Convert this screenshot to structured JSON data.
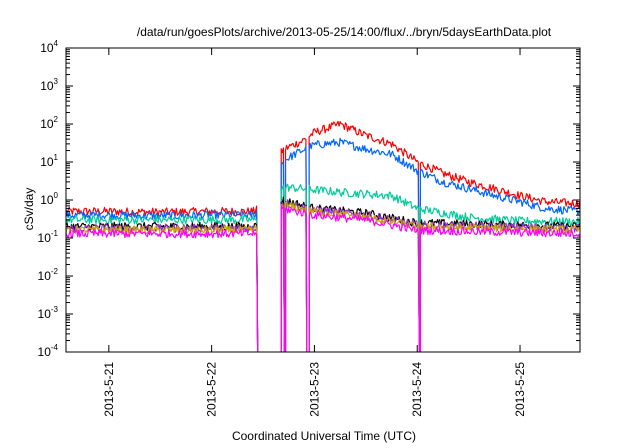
{
  "chart_data": {
    "type": "line",
    "title": "/data/run/goesPlots/archive/2013-05-25/14:00/flux/../bryn/5daysEarthData.plot",
    "xlabel": "Coordinated Universal Time (UTC)",
    "ylabel": "cSv/day",
    "y_scale": "log",
    "ylim": [
      0.0001,
      10000
    ],
    "y_ticks": [
      {
        "base": "10",
        "exp": "-4",
        "value": 0.0001
      },
      {
        "base": "10",
        "exp": "-3",
        "value": 0.001
      },
      {
        "base": "10",
        "exp": "-2",
        "value": 0.01
      },
      {
        "base": "10",
        "exp": "-1",
        "value": 0.1
      },
      {
        "base": "10",
        "exp": "0",
        "value": 1
      },
      {
        "base": "10",
        "exp": "1",
        "value": 10
      },
      {
        "base": "10",
        "exp": "2",
        "value": 100
      },
      {
        "base": "10",
        "exp": "3",
        "value": 1000
      },
      {
        "base": "10",
        "exp": "4",
        "value": 10000
      }
    ],
    "xlim": [
      "2013-05-20 14:00",
      "2013-05-25 14:00"
    ],
    "x_ticks": [
      "2013-5-21",
      "2013-5-22",
      "2013-5-23",
      "2013-5-24",
      "2013-5-25"
    ],
    "grid": false,
    "legend": "none",
    "series": [
      {
        "color": "#ff0000",
        "x": [
          "2013-05-20 14:00",
          "2013-05-21 00:00",
          "2013-05-21 12:00",
          "2013-05-22 00:00",
          "2013-05-22 10:00",
          "2013-05-22 16:30",
          "2013-05-22 18:00",
          "2013-05-22 21:00",
          "2013-05-23 00:00",
          "2013-05-23 06:00",
          "2013-05-23 12:00",
          "2013-05-23 18:00",
          "2013-05-24 00:00",
          "2013-05-24 06:00",
          "2013-05-24 12:00",
          "2013-05-24 18:00",
          "2013-05-25 00:00",
          "2013-05-25 06:00",
          "2013-05-25 14:00"
        ],
        "y": [
          0.5,
          0.5,
          0.48,
          0.5,
          0.5,
          20,
          25,
          35,
          60,
          100,
          50,
          30,
          10,
          5,
          3,
          2,
          1.3,
          0.9,
          0.8
        ]
      },
      {
        "color": "#0066ff",
        "x": [
          "2013-05-20 14:00",
          "2013-05-21 00:00",
          "2013-05-21 12:00",
          "2013-05-22 00:00",
          "2013-05-22 10:00",
          "2013-05-22 16:30",
          "2013-05-22 18:00",
          "2013-05-22 21:00",
          "2013-05-23 00:00",
          "2013-05-23 06:00",
          "2013-05-23 12:00",
          "2013-05-23 18:00",
          "2013-05-24 00:00",
          "2013-05-24 06:00",
          "2013-05-24 12:00",
          "2013-05-24 18:00",
          "2013-05-25 00:00",
          "2013-05-25 06:00",
          "2013-05-25 14:00"
        ],
        "y": [
          0.4,
          0.4,
          0.38,
          0.4,
          0.4,
          10,
          13,
          20,
          28,
          33,
          22,
          16,
          6,
          3,
          2,
          1.3,
          0.9,
          0.6,
          0.5
        ]
      },
      {
        "color": "#00cc99",
        "x": [
          "2013-05-20 14:00",
          "2013-05-21 12:00",
          "2013-05-22 10:00",
          "2013-05-22 16:30",
          "2013-05-22 21:00",
          "2013-05-23 06:00",
          "2013-05-23 18:00",
          "2013-05-24 00:00",
          "2013-05-24 12:00",
          "2013-05-25 00:00",
          "2013-05-25 14:00"
        ],
        "y": [
          0.3,
          0.3,
          0.3,
          2.2,
          2.0,
          1.6,
          1.3,
          0.6,
          0.35,
          0.28,
          0.27
        ]
      },
      {
        "color": "#000000",
        "x": [
          "2013-05-20 14:00",
          "2013-05-22 10:00",
          "2013-05-22 16:30",
          "2013-05-23 00:00",
          "2013-05-23 12:00",
          "2013-05-24 00:00",
          "2013-05-25 14:00"
        ],
        "y": [
          0.2,
          0.2,
          1.0,
          0.6,
          0.45,
          0.25,
          0.2
        ]
      },
      {
        "color": "#9933cc",
        "x": [
          "2013-05-20 14:00",
          "2013-05-22 10:00",
          "2013-05-22 16:30",
          "2013-05-23 00:00",
          "2013-05-23 12:00",
          "2013-05-24 00:00",
          "2013-05-25 14:00"
        ],
        "y": [
          0.18,
          0.18,
          0.85,
          0.55,
          0.4,
          0.22,
          0.18
        ]
      },
      {
        "color": "#ccaa00",
        "x": [
          "2013-05-20 14:00",
          "2013-05-22 10:00",
          "2013-05-22 16:30",
          "2013-05-23 00:00",
          "2013-05-23 12:00",
          "2013-05-24 00:00",
          "2013-05-25 14:00"
        ],
        "y": [
          0.16,
          0.16,
          0.75,
          0.5,
          0.35,
          0.2,
          0.16
        ]
      },
      {
        "color": "#ff00ff",
        "x": [
          "2013-05-20 14:00",
          "2013-05-22 10:00",
          "2013-05-22 16:30",
          "2013-05-23 00:00",
          "2013-05-23 12:00",
          "2013-05-24 00:00",
          "2013-05-25 14:00"
        ],
        "y": [
          0.13,
          0.13,
          0.6,
          0.4,
          0.3,
          0.16,
          0.13
        ]
      }
    ],
    "data_gaps": [
      {
        "start": "2013-05-22 10:30",
        "end": "2013-05-22 16:15"
      },
      {
        "start": "2013-05-22 16:45",
        "end": "2013-05-22 17:15"
      },
      {
        "start": "2013-05-22 22:00",
        "end": "2013-05-22 22:45"
      },
      {
        "start": "2013-05-24 00:15",
        "end": "2013-05-24 00:45"
      }
    ]
  }
}
